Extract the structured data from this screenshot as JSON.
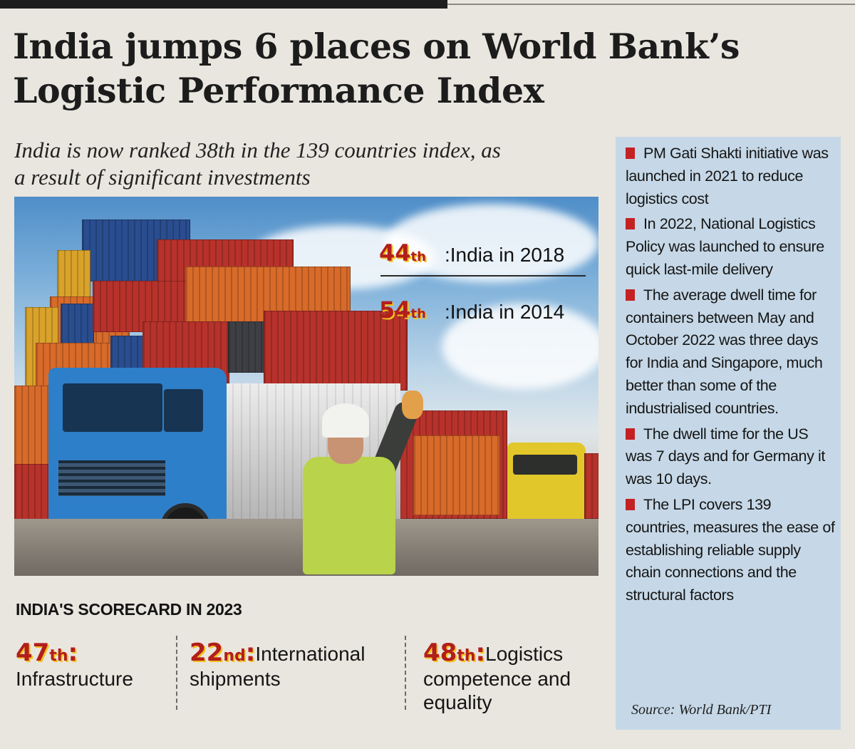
{
  "headline": "India jumps 6 places on World Bank’s Logistic Performance Index",
  "subhead": "India is now ranked 38th in the 139 countries index, as a result of significant investments",
  "photo_ranks": [
    {
      "rank": "44",
      "suffix": "th",
      "label": ":India in 2018"
    },
    {
      "rank": "54",
      "suffix": "th",
      "label": ":India in 2014"
    }
  ],
  "scorecard": {
    "title": "INDIA'S SCORECARD IN 2023",
    "items": [
      {
        "rank": "47",
        "suffix": "th",
        "colon": ":",
        "label_inline": "",
        "label": "Infrastructure"
      },
      {
        "rank": "22",
        "suffix": "nd",
        "colon": ":",
        "label_inline": "International",
        "label": "shipments"
      },
      {
        "rank": "48",
        "suffix": "th",
        "colon": ":",
        "label_inline": "Logistics",
        "label": "competence and equality"
      }
    ]
  },
  "sidebar": {
    "bullets": [
      "PM Gati Shakti initiative was launched in 2021 to reduce logistics cost",
      "In 2022, National Logistics Policy was launched to ensure quick last-mile delivery",
      "The average dwell time for containers between May and October 2022 was three days for India and Singapore, much better than some of the industrialised countries.",
      "The dwell time for the US was 7 days and for Germany it was 10 days.",
      "The LPI covers 139 countries, measures the ease of establishing reliable supply chain connections and the structural factors"
    ],
    "source": "Source: World Bank/PTI"
  },
  "colors": {
    "accent_red": "#b21e1b",
    "accent_yellow": "#f2c21e",
    "sidebar_bg": "#c6d8e7",
    "bullet": "#c42123"
  }
}
